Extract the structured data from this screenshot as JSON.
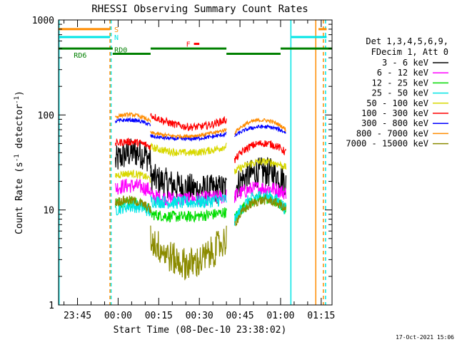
{
  "chart_data": {
    "type": "line",
    "title": "RHESSI Observing Summary Count Rates",
    "xlabel": "Start Time (08-Dec-10 23:38:02)",
    "ylabel_main": "Count Rate (s",
    "ylabel_sup1": "-1",
    "ylabel_mid": " detector",
    "ylabel_sup2": "-1",
    "ylabel_end": ")",
    "yscale": "log",
    "ylim": [
      1,
      1000
    ],
    "xlim_minutes": [
      -22,
      79
    ],
    "y_ticks": [
      {
        "value": 1,
        "label": "1"
      },
      {
        "value": 10,
        "label": "10"
      },
      {
        "value": 100,
        "label": "100"
      },
      {
        "value": 1000,
        "label": "1000"
      }
    ],
    "x_ticks": [
      {
        "t": -15,
        "label": "23:45"
      },
      {
        "t": 0,
        "label": "00:00"
      },
      {
        "t": 15,
        "label": "00:15"
      },
      {
        "t": 30,
        "label": "00:30"
      },
      {
        "t": 45,
        "label": "00:45"
      },
      {
        "t": 60,
        "label": "01:00"
      },
      {
        "t": 75,
        "label": "01:15"
      }
    ],
    "legend": {
      "header": [
        "Det 1,3,4,5,6,9,",
        "FDecim 1, Att 0"
      ],
      "placement": "right"
    },
    "series": [
      {
        "name": "3 - 6 keV",
        "color": "#000000",
        "seg1": [
          32,
          40,
          34
        ],
        "seg2": [
          22,
          17,
          17
        ],
        "seg3": [
          17,
          25,
          20
        ]
      },
      {
        "name": "6 - 12 keV",
        "color": "#ff00ff",
        "seg1": [
          17,
          18,
          16
        ],
        "seg2": [
          14,
          13,
          14
        ],
        "seg3": [
          14,
          17,
          15
        ]
      },
      {
        "name": "12 - 25 keV",
        "color": "#00dd00",
        "seg1": [
          12,
          12,
          10
        ],
        "seg2": [
          9,
          8.5,
          9.5
        ],
        "seg3": [
          8,
          13,
          10
        ]
      },
      {
        "name": "25 - 50 keV",
        "color": "#00e5e5",
        "seg1": [
          10,
          11,
          9.5
        ],
        "seg2": [
          12.5,
          12,
          13
        ],
        "seg3": [
          7.5,
          14,
          10
        ]
      },
      {
        "name": "50 - 100 keV",
        "color": "#d8d800",
        "seg1": [
          23,
          24,
          21
        ],
        "seg2": [
          46,
          40,
          47
        ],
        "seg3": [
          25,
          32,
          28
        ]
      },
      {
        "name": "100 - 300 keV",
        "color": "#ff0000",
        "seg1": [
          50,
          52,
          46
        ],
        "seg2": [
          100,
          75,
          90
        ],
        "seg3": [
          33,
          50,
          40
        ]
      },
      {
        "name": "300 - 800 keV",
        "color": "#0000ff",
        "seg1": [
          85,
          88,
          78
        ],
        "seg2": [
          60,
          56,
          63
        ],
        "seg3": [
          60,
          75,
          65
        ]
      },
      {
        "name": "800 - 7000 keV",
        "color": "#ff8c00",
        "seg1": [
          95,
          100,
          85
        ],
        "seg2": [
          65,
          60,
          70
        ],
        "seg3": [
          65,
          88,
          70
        ]
      },
      {
        "name": "7000 - 15000 keV",
        "color": "#8b8b00",
        "seg1": [
          12,
          12.5,
          10
        ],
        "seg2": [
          5,
          2.7,
          5
        ],
        "seg3": [
          7,
          12.5,
          10
        ]
      }
    ],
    "segment_minutes": [
      [
        -1,
        12
      ],
      [
        12,
        40
      ],
      [
        43,
        62
      ]
    ],
    "indicators": [
      {
        "label": "S",
        "color": "#ff8c00",
        "y": 800,
        "segments": [
          [
            -22,
            -3
          ],
          [
            74,
            77
          ]
        ]
      },
      {
        "label": "N",
        "color": "#00e5e5",
        "y": 660,
        "segments": [
          [
            -22,
            -3
          ],
          [
            64,
            77
          ]
        ]
      },
      {
        "label": "F",
        "color": "#ff0000",
        "y": 560,
        "segments": [
          [
            28,
            30
          ]
        ]
      }
    ],
    "orbit_bars": {
      "color": "#008000",
      "labels": [
        {
          "text": "RD6",
          "t": -14,
          "y": 430
        },
        {
          "text": "RD0",
          "t": 1,
          "y": 490
        }
      ],
      "segments": [
        {
          "from": -22,
          "to": -2,
          "y": 500
        },
        {
          "from": -2,
          "to": 12,
          "y": 440
        },
        {
          "from": 12,
          "to": 40,
          "y": 500
        },
        {
          "from": 40,
          "to": 60,
          "y": 440
        },
        {
          "from": 60,
          "to": 79,
          "y": 500
        }
      ]
    },
    "vertical_lines": [
      {
        "t": -21.8,
        "color": "#00e5e5",
        "dashed": false
      },
      {
        "t": -3,
        "color": "#ff8c00",
        "dashed": true
      },
      {
        "t": -2.6,
        "color": "#00e5e5",
        "dashed": true
      },
      {
        "t": 63.8,
        "color": "#00e5e5",
        "dashed": false
      },
      {
        "t": 73,
        "color": "#ff8c00",
        "dashed": false
      },
      {
        "t": 76.6,
        "color": "#00e5e5",
        "dashed": true
      },
      {
        "t": 75.8,
        "color": "#ff8c00",
        "dashed": true
      }
    ],
    "timestamp": "17-Oct-2021 15:06",
    "grid": false
  }
}
